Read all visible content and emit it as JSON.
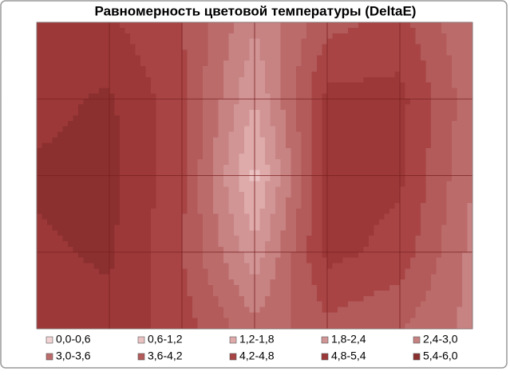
{
  "chart_data": {
    "type": "contour",
    "title": "Равномерность цветовой температуры (DeltaE)",
    "bands": [
      {
        "name": "0,0-0,6",
        "color": "#f2d4d4",
        "min": 0,
        "max": 0.6
      },
      {
        "name": "0,6-1,2",
        "color": "#ebc2c2",
        "min": 0.6,
        "max": 1.2
      },
      {
        "name": "1,2-1,8",
        "color": "#deaaaa",
        "min": 1.2,
        "max": 1.8
      },
      {
        "name": "1,8-2,4",
        "color": "#d29595",
        "min": 1.8,
        "max": 2.4
      },
      {
        "name": "2,4-3,0",
        "color": "#c78282",
        "min": 2.4,
        "max": 3.0
      },
      {
        "name": "3,0-3,6",
        "color": "#bc6b6b",
        "min": 3.0,
        "max": 3.6
      },
      {
        "name": "3,6-4,2",
        "color": "#b35a5a",
        "min": 3.6,
        "max": 4.2
      },
      {
        "name": "4,2-4,8",
        "color": "#a84444",
        "min": 4.2,
        "max": 4.8
      },
      {
        "name": "4,8-5,4",
        "color": "#9c3838",
        "min": 4.8,
        "max": 5.4
      },
      {
        "name": "5,4-6,0",
        "color": "#8c2f2f",
        "min": 5.4,
        "max": 6.0
      }
    ],
    "z": [
      [
        4.8,
        4.9,
        4.2,
        2.5,
        4.0,
        4.4,
        3.0
      ],
      [
        5.2,
        5.5,
        4.4,
        1.8,
        5.0,
        5.0,
        3.2
      ],
      [
        5.5,
        5.6,
        4.4,
        1.0,
        5.0,
        4.9,
        3.0
      ],
      [
        5.3,
        5.5,
        4.2,
        2.0,
        5.0,
        4.6,
        2.8
      ],
      [
        5.0,
        5.2,
        4.5,
        3.2,
        4.0,
        3.6,
        2.8
      ]
    ],
    "grid": true
  }
}
